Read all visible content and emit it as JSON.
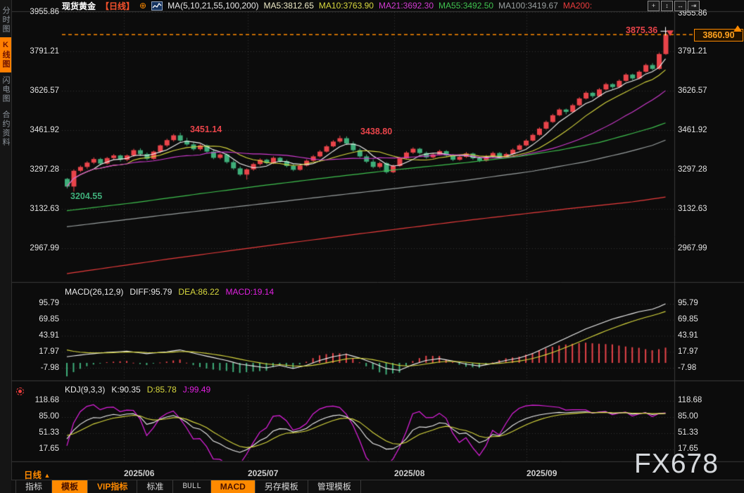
{
  "header": {
    "symbol": "现货黄金",
    "period_tag": "【日线】",
    "plus_icon": "⊕",
    "ma_window_label": "MA(5,10,21,55,100,200)",
    "ma_items": [
      "MA5:3812.65",
      "MA10:3763.90",
      "MA21:3692.30",
      "MA55:3492.50",
      "MA100:3419.67",
      "MA200:"
    ],
    "window_icons": [
      "+",
      "↕",
      "↔",
      "⇥"
    ]
  },
  "sidebar": {
    "items": [
      {
        "label": "分时图",
        "active": false
      },
      {
        "label": "K线图",
        "active": true
      },
      {
        "label": "闪电图",
        "active": false
      },
      {
        "label": "合约资料",
        "active": false
      }
    ]
  },
  "price_tag": {
    "value": "3860.90"
  },
  "annotations": {
    "last_high": "3875.36",
    "june_high": "3451.14",
    "july_high": "3438.80",
    "june_low": "3204.55"
  },
  "macd_header": {
    "name": "MACD(26,12,9)",
    "diff": "DIFF:95.79",
    "dea": "DEA:86.22",
    "macd": "MACD:19.14"
  },
  "kdj_header": {
    "name": "KDJ(9,3,3)",
    "k": "K:90.35",
    "d": "D:85.78",
    "j": "J:99.49"
  },
  "xaxis": {
    "period_label": "日线",
    "period_arrow": "▲",
    "labels": [
      "2025/06",
      "2025/07",
      "2025/08",
      "2025/09"
    ]
  },
  "toolbar": {
    "items": [
      {
        "label": "指标",
        "style": "default"
      },
      {
        "label": "模板",
        "style": "active"
      },
      {
        "label": "VIP指标",
        "style": "vip"
      },
      {
        "label": "标准",
        "style": "default"
      },
      {
        "label": "BULL",
        "style": "mono"
      },
      {
        "label": "MACD",
        "style": "active"
      },
      {
        "label": "另存模板",
        "style": "default"
      },
      {
        "label": "管理模板",
        "style": "default"
      }
    ]
  },
  "watermark": "FX678",
  "colors": {
    "candle_up": "#e9444a",
    "candle_down": "#3fae7a",
    "ma5": "#f2f2f2",
    "ma10": "#d8d83e",
    "ma21": "#d13bd1",
    "ma55": "#3fc24f",
    "ma100": "#9aa0a0",
    "ma200": "#e93c3c",
    "accent_orange": "#ff8a00",
    "grid": "rgba(255,255,255,0.16)",
    "diff_line": "#f2f2f2",
    "dea_line": "#d8d83e",
    "k_line": "#f2f2f2",
    "d_line": "#d8d83e",
    "j_line": "#e020e0"
  },
  "chart_data": {
    "type": "candlestick",
    "title": "现货黄金 日线",
    "price_axis_labels": [
      "3955.86",
      "3791.21",
      "3626.57",
      "3461.92",
      "3297.28",
      "3132.63",
      "2967.99"
    ],
    "macd_axis_labels": [
      "95.79",
      "69.85",
      "43.91",
      "17.97",
      "-7.98"
    ],
    "kdj_axis_labels": [
      "118.68",
      "85.00",
      "51.33",
      "17.65"
    ],
    "month_labels": [
      "2025/06",
      "2025/07",
      "2025/08",
      "2025/09"
    ],
    "current_price": 3860.9,
    "session_high": 3875.36,
    "candles_ohlc": [
      [
        3258,
        3262,
        3218,
        3226
      ],
      [
        3226,
        3298,
        3204.55,
        3292
      ],
      [
        3292,
        3314,
        3286,
        3308
      ],
      [
        3308,
        3332,
        3300,
        3326
      ],
      [
        3326,
        3348,
        3320,
        3341
      ],
      [
        3341,
        3346,
        3314,
        3322
      ],
      [
        3322,
        3350,
        3318,
        3345
      ],
      [
        3345,
        3362,
        3338,
        3356
      ],
      [
        3356,
        3360,
        3330,
        3338
      ],
      [
        3338,
        3360,
        3332,
        3356
      ],
      [
        3356,
        3384,
        3350,
        3378
      ],
      [
        3378,
        3386,
        3354,
        3362
      ],
      [
        3362,
        3368,
        3336,
        3342
      ],
      [
        3342,
        3376,
        3338,
        3372
      ],
      [
        3372,
        3402,
        3366,
        3398
      ],
      [
        3398,
        3426,
        3392,
        3420
      ],
      [
        3420,
        3446,
        3414,
        3440
      ],
      [
        3440,
        3451.14,
        3412,
        3418
      ],
      [
        3418,
        3430,
        3396,
        3402
      ],
      [
        3402,
        3412,
        3376,
        3382
      ],
      [
        3382,
        3404,
        3376,
        3398
      ],
      [
        3398,
        3402,
        3366,
        3372
      ],
      [
        3372,
        3380,
        3340,
        3346
      ],
      [
        3346,
        3366,
        3340,
        3360
      ],
      [
        3360,
        3364,
        3322,
        3328
      ],
      [
        3328,
        3336,
        3296,
        3302
      ],
      [
        3302,
        3310,
        3270,
        3276
      ],
      [
        3276,
        3302,
        3255,
        3298
      ],
      [
        3298,
        3326,
        3292,
        3320
      ],
      [
        3320,
        3344,
        3314,
        3338
      ],
      [
        3338,
        3342,
        3318,
        3324
      ],
      [
        3324,
        3352,
        3320,
        3346
      ],
      [
        3346,
        3350,
        3326,
        3332
      ],
      [
        3332,
        3338,
        3306,
        3312
      ],
      [
        3312,
        3322,
        3290,
        3296
      ],
      [
        3296,
        3320,
        3292,
        3314
      ],
      [
        3314,
        3340,
        3310,
        3334
      ],
      [
        3334,
        3358,
        3330,
        3352
      ],
      [
        3352,
        3378,
        3348,
        3372
      ],
      [
        3372,
        3400,
        3368,
        3394
      ],
      [
        3394,
        3420,
        3390,
        3414
      ],
      [
        3414,
        3438.8,
        3408,
        3428
      ],
      [
        3428,
        3436,
        3400,
        3406
      ],
      [
        3406,
        3414,
        3372,
        3378
      ],
      [
        3378,
        3386,
        3346,
        3352
      ],
      [
        3352,
        3360,
        3324,
        3330
      ],
      [
        3330,
        3340,
        3302,
        3308
      ],
      [
        3308,
        3330,
        3302,
        3324
      ],
      [
        3324,
        3328,
        3280,
        3286
      ],
      [
        3286,
        3318,
        3282,
        3312
      ],
      [
        3312,
        3350,
        3308,
        3344
      ],
      [
        3344,
        3374,
        3340,
        3368
      ],
      [
        3368,
        3390,
        3362,
        3384
      ],
      [
        3384,
        3388,
        3360,
        3366
      ],
      [
        3366,
        3372,
        3342,
        3348
      ],
      [
        3348,
        3366,
        3344,
        3360
      ],
      [
        3360,
        3380,
        3356,
        3374
      ],
      [
        3374,
        3378,
        3350,
        3356
      ],
      [
        3356,
        3362,
        3332,
        3338
      ],
      [
        3338,
        3356,
        3334,
        3350
      ],
      [
        3350,
        3370,
        3346,
        3364
      ],
      [
        3364,
        3368,
        3338,
        3344
      ],
      [
        3344,
        3350,
        3328,
        3334
      ],
      [
        3334,
        3358,
        3330,
        3352
      ],
      [
        3352,
        3372,
        3348,
        3366
      ],
      [
        3366,
        3370,
        3342,
        3348
      ],
      [
        3348,
        3368,
        3344,
        3362
      ],
      [
        3362,
        3386,
        3358,
        3380
      ],
      [
        3380,
        3404,
        3376,
        3398
      ],
      [
        3398,
        3424,
        3394,
        3418
      ],
      [
        3418,
        3448,
        3414,
        3442
      ],
      [
        3442,
        3474,
        3438,
        3468
      ],
      [
        3468,
        3502,
        3464,
        3496
      ],
      [
        3496,
        3530,
        3492,
        3524
      ],
      [
        3524,
        3554,
        3520,
        3548
      ],
      [
        3548,
        3552,
        3528,
        3538
      ],
      [
        3538,
        3572,
        3534,
        3566
      ],
      [
        3566,
        3600,
        3562,
        3594
      ],
      [
        3594,
        3624,
        3590,
        3618
      ],
      [
        3618,
        3622,
        3596,
        3604
      ],
      [
        3604,
        3638,
        3600,
        3632
      ],
      [
        3632,
        3660,
        3628,
        3654
      ],
      [
        3654,
        3658,
        3634,
        3642
      ],
      [
        3642,
        3674,
        3638,
        3668
      ],
      [
        3668,
        3700,
        3664,
        3694
      ],
      [
        3694,
        3698,
        3670,
        3678
      ],
      [
        3678,
        3712,
        3674,
        3706
      ],
      [
        3706,
        3740,
        3702,
        3734
      ],
      [
        3734,
        3742,
        3712,
        3718
      ],
      [
        3718,
        3786,
        3714,
        3780
      ],
      [
        3780,
        3875.36,
        3776,
        3860.9
      ]
    ],
    "computed_mas": [
      {
        "name": "MA5",
        "window": 5,
        "color_key": "ma5"
      },
      {
        "name": "MA10",
        "window": 10,
        "color_key": "ma10"
      },
      {
        "name": "MA21",
        "window": 21,
        "color_key": "ma21"
      }
    ],
    "ma_overlays": [
      {
        "name": "MA55",
        "color_key": "ma55",
        "points": [
          [
            0,
            3125
          ],
          [
            10,
            3158
          ],
          [
            20,
            3196
          ],
          [
            30,
            3232
          ],
          [
            40,
            3266
          ],
          [
            50,
            3298
          ],
          [
            60,
            3326
          ],
          [
            68,
            3352
          ],
          [
            74,
            3378
          ],
          [
            80,
            3410
          ],
          [
            85,
            3448
          ],
          [
            88,
            3472
          ],
          [
            90,
            3492
          ]
        ]
      },
      {
        "name": "MA100",
        "color_key": "ma100",
        "points": [
          [
            0,
            3058
          ],
          [
            15,
            3108
          ],
          [
            30,
            3156
          ],
          [
            45,
            3204
          ],
          [
            60,
            3252
          ],
          [
            70,
            3290
          ],
          [
            78,
            3330
          ],
          [
            84,
            3368
          ],
          [
            88,
            3398
          ],
          [
            90,
            3420
          ]
        ]
      },
      {
        "name": "MA200",
        "color_key": "ma200",
        "points": [
          [
            0,
            2862
          ],
          [
            15,
            2922
          ],
          [
            30,
            2978
          ],
          [
            45,
            3032
          ],
          [
            60,
            3084
          ],
          [
            75,
            3132
          ],
          [
            85,
            3162
          ],
          [
            90,
            3182
          ]
        ]
      }
    ],
    "macd": {
      "diff_points": [
        [
          0,
          10
        ],
        [
          3,
          14
        ],
        [
          6,
          17
        ],
        [
          9,
          19
        ],
        [
          12,
          15
        ],
        [
          15,
          18
        ],
        [
          17,
          21
        ],
        [
          19,
          16
        ],
        [
          21,
          11
        ],
        [
          24,
          4
        ],
        [
          26,
          -2
        ],
        [
          28,
          -5
        ],
        [
          30,
          -8
        ],
        [
          32,
          -4
        ],
        [
          34,
          -9
        ],
        [
          36,
          -4
        ],
        [
          38,
          4
        ],
        [
          40,
          10
        ],
        [
          42,
          14
        ],
        [
          44,
          8
        ],
        [
          46,
          0
        ],
        [
          48,
          -9
        ],
        [
          50,
          -12
        ],
        [
          52,
          -3
        ],
        [
          54,
          4
        ],
        [
          56,
          7
        ],
        [
          58,
          3
        ],
        [
          60,
          -2
        ],
        [
          62,
          -5
        ],
        [
          64,
          -1
        ],
        [
          66,
          4
        ],
        [
          68,
          8
        ],
        [
          70,
          15
        ],
        [
          72,
          25
        ],
        [
          74,
          35
        ],
        [
          76,
          45
        ],
        [
          78,
          55
        ],
        [
          80,
          63
        ],
        [
          82,
          71
        ],
        [
          84,
          77
        ],
        [
          86,
          83
        ],
        [
          88,
          87
        ],
        [
          89,
          91
        ],
        [
          90,
          95.79
        ]
      ],
      "dea_smoothing": 0.22,
      "dea_seed": 24
    },
    "kdj": {
      "n": 9,
      "k_seed": 50,
      "d_seed": 50
    }
  }
}
